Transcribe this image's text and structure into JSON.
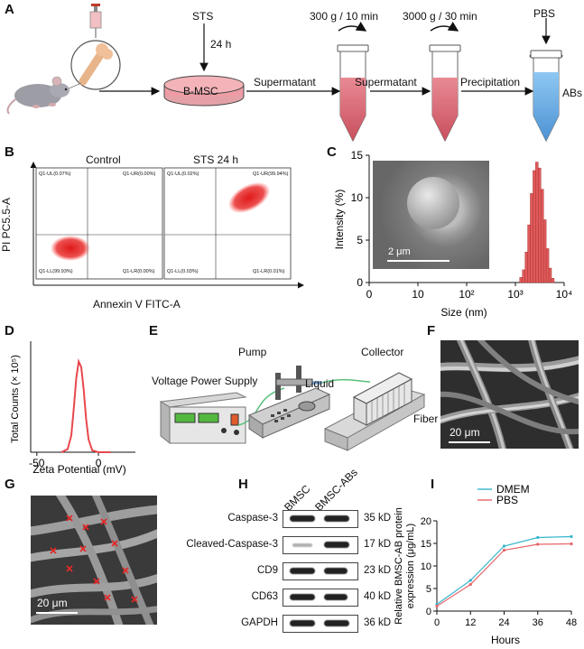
{
  "panels": {
    "A": {
      "letter": "A",
      "sts": "STS",
      "time": "24 h",
      "cell_dish": "B-MSC",
      "spin1": "300 g / 10 min",
      "spin2": "3000 g / 30 min",
      "pbs": "PBS",
      "step1": "Supermatant",
      "step2": "Supermatant",
      "step3": "Precipitation",
      "product": "ABs"
    },
    "B": {
      "letter": "B",
      "title_control": "Control",
      "title_sts": "STS 24 h",
      "ylabel": "PI PC5.5-A",
      "xlabel": "Annexin V FITC-A",
      "control_quadrants": {
        "ul": "Q1-UL(0.07%)",
        "ur": "Q1-UR(0.00%)",
        "ll": "Q1-LL(99.93%)",
        "lr": "Q1-LR(0.00%)"
      },
      "sts_quadrants": {
        "ul": "Q1-UL(0.02%)",
        "ur": "Q1-UR(99.94%)",
        "ll": "Q1-LL(0.03%)",
        "lr": "Q1-LR(0.01%)"
      }
    },
    "C": {
      "letter": "C",
      "scale": "2 μm",
      "tick_x_0": "0",
      "tick_x_1": "10",
      "tick_x_2": "10²",
      "tick_x_3": "10³",
      "tick_x_4": "10⁴",
      "tick_y_0": "0",
      "tick_y_5": "5",
      "tick_y_10": "10",
      "tick_y_15": "15"
    },
    "D": {
      "letter": "D"
    },
    "E": {
      "letter": "E",
      "pump": "Pump",
      "collector": "Collector",
      "power": "Voltage Power Supply",
      "liquid": "Liquid",
      "fiber": "Fiber"
    },
    "F": {
      "letter": "F",
      "scale": "20 μm"
    },
    "G": {
      "letter": "G",
      "scale": "20 μm"
    },
    "H": {
      "letter": "H",
      "lane1": "BMSC",
      "lane2": "BMSC-ABs",
      "rows": [
        {
          "name": "Caspase-3",
          "kd": "35 kD"
        },
        {
          "name": "Cleaved-Caspase-3",
          "kd": "17 kD"
        },
        {
          "name": "CD9",
          "kd": "23 kD"
        },
        {
          "name": "CD63",
          "kd": "40 kD"
        },
        {
          "name": "GAPDH",
          "kd": "36 kD"
        }
      ]
    },
    "I": {
      "letter": "I"
    }
  },
  "chart_data": [
    {
      "type": "bar",
      "panel": "C",
      "xlabel": "Size (nm)",
      "ylabel": "Intensity (%)",
      "x_scale": "log",
      "xlim": [
        1,
        10000
      ],
      "ylim": [
        0,
        15
      ],
      "x_ticks": [
        "0",
        "10",
        "10²",
        "10³",
        "10⁴"
      ],
      "y_ticks": [
        0,
        5,
        10,
        15
      ],
      "x": [
        1300,
        1480,
        1680,
        1900,
        2150,
        2440,
        2760,
        3130,
        3550,
        4020,
        4560,
        5170,
        5860
      ],
      "values": [
        0.6,
        1.5,
        3.6,
        6.8,
        10.5,
        13.2,
        14.2,
        13.5,
        11.0,
        7.4,
        4.0,
        1.7,
        0.5
      ],
      "color": "#e05a5a"
    },
    {
      "type": "line",
      "panel": "D",
      "xlabel": "Zeta Potential (mV)",
      "ylabel": "Total Counts (× 10⁵)",
      "x_ticks": [
        "-50",
        "0"
      ],
      "xlim": [
        -55,
        30
      ],
      "ylim": [
        0,
        3
      ],
      "x": [
        -30,
        -25,
        -22,
        -20,
        -18,
        -16,
        -14,
        -12,
        -10,
        -8,
        -5,
        0,
        5,
        10
      ],
      "values": [
        0,
        0.08,
        0.45,
        1.2,
        2.0,
        2.45,
        2.3,
        1.7,
        0.9,
        0.35,
        0.05,
        0,
        0,
        0
      ],
      "color": "#e8474c"
    },
    {
      "type": "line",
      "panel": "I",
      "xlabel": "Hours",
      "ylabel": "Relative BMSC-AB protein expression (μg/mL)",
      "ylim": [
        0,
        20
      ],
      "xlim": [
        0,
        48
      ],
      "x_ticks": [
        "0",
        "12",
        "24",
        "36",
        "48"
      ],
      "y_ticks": [
        "0",
        "5",
        "10",
        "15",
        "20"
      ],
      "x": [
        0,
        12,
        24,
        36,
        48
      ],
      "series": [
        {
          "name": "DMEM",
          "values": [
            1.5,
            6.8,
            14.4,
            16.3,
            16.5
          ],
          "color": "#36b6cc"
        },
        {
          "name": "PBS",
          "values": [
            1.1,
            5.9,
            13.5,
            14.8,
            14.9
          ],
          "color": "#e8656a"
        }
      ]
    }
  ]
}
